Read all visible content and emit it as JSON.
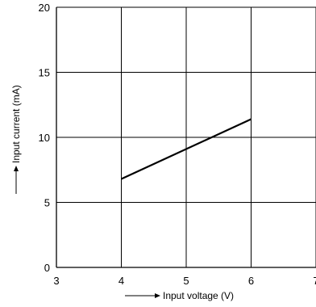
{
  "chart_data": {
    "type": "line",
    "title": "",
    "xlabel": "Input voltage (V)",
    "ylabel": "Input current (mA)",
    "xlim": [
      3,
      7
    ],
    "ylim": [
      0,
      20
    ],
    "x_ticks": [
      3,
      4,
      5,
      6,
      7
    ],
    "y_ticks": [
      0,
      5,
      10,
      15,
      20
    ],
    "grid": true,
    "legend": "none",
    "series": [
      {
        "x": [
          4,
          6
        ],
        "y": [
          6.8,
          11.4
        ],
        "color": "#000000"
      }
    ]
  }
}
